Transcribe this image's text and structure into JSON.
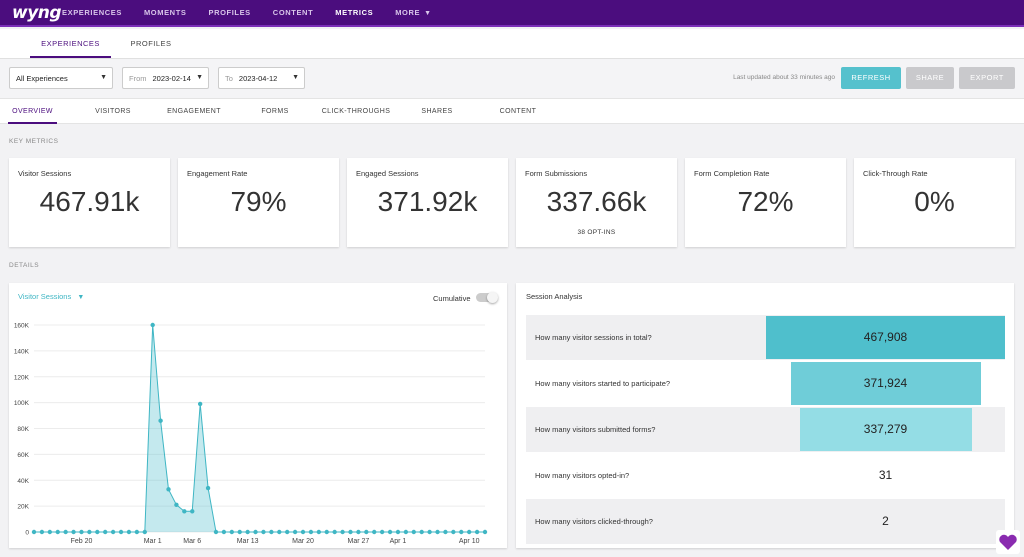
{
  "app": {
    "logo": "wyng"
  },
  "topnav": {
    "items": [
      "EXPERIENCES",
      "MOMENTS",
      "PROFILES",
      "CONTENT",
      "METRICS",
      "MORE"
    ],
    "active": "METRICS"
  },
  "subtabs": [
    "EXPERIENCES",
    "PROFILES"
  ],
  "filters": {
    "experience": "All Experiences",
    "from_label": "From",
    "from_date": "2023-02-14",
    "to_label": "To",
    "to_date": "2023-04-12",
    "last_updated": "Last updated about 33 minutes ago",
    "refresh": "REFRESH",
    "share": "SHARE",
    "export": "EXPORT"
  },
  "metric_tabs": [
    "OVERVIEW",
    "VISITORS",
    "ENGAGEMENT",
    "FORMS",
    "CLICK-THROUGHS",
    "SHARES",
    "CONTENT"
  ],
  "key_metrics_label": "KEY METRICS",
  "details_label": "DETAILS",
  "cards": [
    {
      "title": "Visitor Sessions",
      "value": "467.91k",
      "sub": ""
    },
    {
      "title": "Engagement Rate",
      "value": "79%",
      "sub": ""
    },
    {
      "title": "Engaged Sessions",
      "value": "371.92k",
      "sub": ""
    },
    {
      "title": "Form Submissions",
      "value": "337.66k",
      "sub": "38 OPT-INS"
    },
    {
      "title": "Form Completion Rate",
      "value": "72%",
      "sub": ""
    },
    {
      "title": "Click-Through Rate",
      "value": "0%",
      "sub": ""
    }
  ],
  "chart_panel": {
    "dropdown": "Visitor Sessions",
    "cumulative_label": "Cumulative"
  },
  "chart_data": {
    "type": "area",
    "title": "",
    "xlabel": "",
    "ylabel": "",
    "ylim": [
      0,
      160000
    ],
    "yticks": [
      0,
      20000,
      40000,
      60000,
      80000,
      100000,
      120000,
      140000,
      160000
    ],
    "ytick_labels": [
      "0",
      "20K",
      "40K",
      "60K",
      "80K",
      "100K",
      "120K",
      "140K",
      "160K"
    ],
    "xtick_labels": [
      "Feb 20",
      "Mar 1",
      "Mar 6",
      "Mar 13",
      "Mar 20",
      "Mar 27",
      "Apr 1",
      "Apr 10"
    ],
    "xtick_dates": [
      "2023-02-20",
      "2023-03-01",
      "2023-03-06",
      "2023-03-13",
      "2023-03-20",
      "2023-03-27",
      "2023-04-01",
      "2023-04-10"
    ],
    "x": [
      "2023-02-14",
      "2023-02-15",
      "2023-02-16",
      "2023-02-17",
      "2023-02-18",
      "2023-02-19",
      "2023-02-20",
      "2023-02-21",
      "2023-02-22",
      "2023-02-23",
      "2023-02-24",
      "2023-02-25",
      "2023-02-26",
      "2023-02-27",
      "2023-02-28",
      "2023-03-01",
      "2023-03-02",
      "2023-03-03",
      "2023-03-04",
      "2023-03-05",
      "2023-03-06",
      "2023-03-07",
      "2023-03-08",
      "2023-03-09",
      "2023-03-10",
      "2023-03-11",
      "2023-03-12",
      "2023-03-13",
      "2023-03-14",
      "2023-03-15",
      "2023-03-16",
      "2023-03-17",
      "2023-03-18",
      "2023-03-19",
      "2023-03-20",
      "2023-03-21",
      "2023-03-22",
      "2023-03-23",
      "2023-03-24",
      "2023-03-25",
      "2023-03-26",
      "2023-03-27",
      "2023-03-28",
      "2023-03-29",
      "2023-03-30",
      "2023-03-31",
      "2023-04-01",
      "2023-04-02",
      "2023-04-03",
      "2023-04-04",
      "2023-04-05",
      "2023-04-06",
      "2023-04-07",
      "2023-04-08",
      "2023-04-09",
      "2023-04-10",
      "2023-04-11",
      "2023-04-12"
    ],
    "values": [
      0,
      0,
      0,
      0,
      0,
      0,
      0,
      0,
      0,
      0,
      0,
      0,
      0,
      0,
      0,
      160000,
      86000,
      33000,
      21000,
      16000,
      16000,
      99000,
      34000,
      0,
      0,
      0,
      0,
      0,
      0,
      0,
      0,
      0,
      0,
      0,
      0,
      0,
      0,
      0,
      0,
      0,
      0,
      0,
      0,
      0,
      0,
      0,
      0,
      0,
      0,
      0,
      0,
      0,
      0,
      0,
      0,
      0,
      0,
      0
    ],
    "grid": true
  },
  "analysis": {
    "title": "Session Analysis",
    "rows": [
      {
        "question": "How many visitor sessions in total?",
        "value": "467,908",
        "fraction": 1.0,
        "color": "#4fbfcc"
      },
      {
        "question": "How many visitors started to participate?",
        "value": "371,924",
        "fraction": 0.795,
        "color": "#6fcdd8"
      },
      {
        "question": "How many visitors submitted forms?",
        "value": "337,279",
        "fraction": 0.721,
        "color": "#94dde5"
      },
      {
        "question": "How many visitors opted-in?",
        "value": "31",
        "fraction": 0,
        "color": "#94dde5"
      },
      {
        "question": "How many visitors clicked-through?",
        "value": "2",
        "fraction": 0,
        "color": "#94dde5"
      }
    ]
  },
  "colors": {
    "brand": "#4b0d7e",
    "accent": "#55c1cd",
    "line": "#3fb6c4"
  }
}
